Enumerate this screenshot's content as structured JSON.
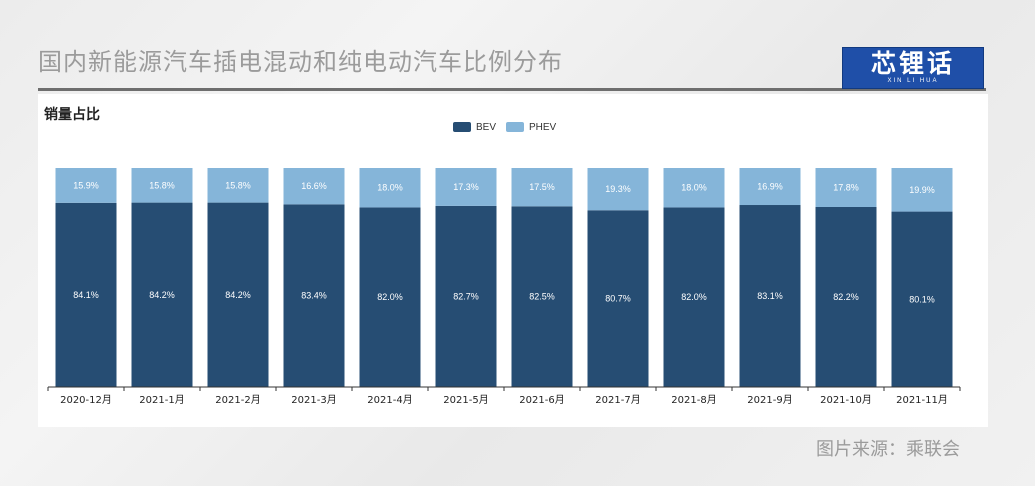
{
  "slide": {
    "title": "国内新能源汽车插电混动和纯电动汽车比例分布",
    "source": "图片来源：乘联会"
  },
  "logo": {
    "main": "芯锂话",
    "sub": "XIN LI HUA"
  },
  "colors": {
    "bev": "#264d73",
    "phev": "#85b5d9",
    "axis": "#333333"
  },
  "chart_data": {
    "type": "bar",
    "stacked": true,
    "title": "销量占比",
    "categories": [
      "2020-12月",
      "2021-1月",
      "2021-2月",
      "2021-3月",
      "2021-4月",
      "2021-5月",
      "2021-6月",
      "2021-7月",
      "2021-8月",
      "2021-9月",
      "2021-10月",
      "2021-11月"
    ],
    "series": [
      {
        "name": "BEV",
        "values": [
          84.1,
          84.2,
          84.2,
          83.4,
          82.0,
          82.7,
          82.5,
          80.7,
          82.0,
          83.1,
          82.2,
          80.1
        ],
        "labels": [
          "84.1%",
          "84.2%",
          "84.2%",
          "83.4%",
          "82.0%",
          "82.7%",
          "82.5%",
          "80.7%",
          "82.0%",
          "83.1%",
          "82.2%",
          "80.1%"
        ]
      },
      {
        "name": "PHEV",
        "values": [
          15.9,
          15.8,
          15.8,
          16.6,
          18.0,
          17.3,
          17.5,
          19.3,
          18.0,
          16.9,
          17.8,
          19.9
        ],
        "labels": [
          "15.9%",
          "15.8%",
          "15.8%",
          "16.6%",
          "18.0%",
          "17.3%",
          "17.5%",
          "19.3%",
          "18.0%",
          "16.9%",
          "17.8%",
          "19.9%"
        ]
      }
    ],
    "ylim": [
      0,
      100
    ],
    "legend": "top-center",
    "grid": false
  }
}
